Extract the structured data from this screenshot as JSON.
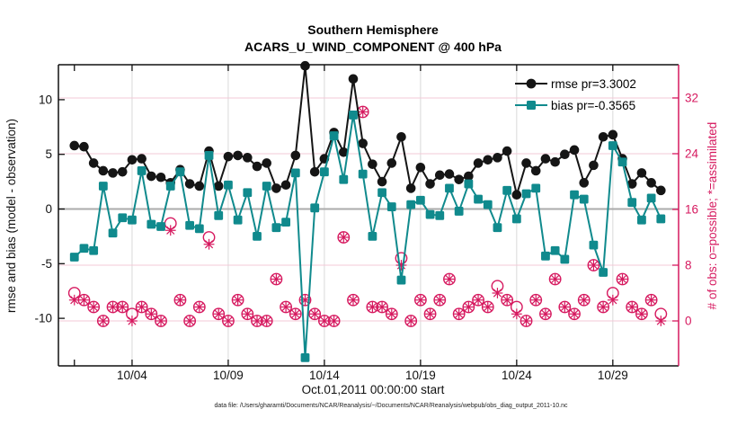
{
  "title": {
    "line1": "Southern Hemisphere",
    "line2": "ACARS_U_WIND_COMPONENT @ 400 hPa"
  },
  "axes": {
    "left": {
      "label": "rmse and bias (model - observation)",
      "ticks": [
        -10,
        -5,
        0,
        5,
        10
      ],
      "lim": [
        -14.35,
        13.2
      ],
      "color": "#111111"
    },
    "right": {
      "label": "# of obs: o=possible; *=assimilated",
      "ticks": [
        0,
        8,
        16,
        24,
        32
      ],
      "lim": [
        -6.45,
        36.77
      ],
      "color": "#d6195f"
    },
    "x": {
      "label": "Oct.01,2011 00:00:00 start",
      "ticks": [
        {
          "day": 1,
          "label": ""
        },
        {
          "day": 4,
          "label": "10/04"
        },
        {
          "day": 9,
          "label": "10/09"
        },
        {
          "day": 14,
          "label": "10/14"
        },
        {
          "day": 19,
          "label": "10/19"
        },
        {
          "day": 24,
          "label": "10/24"
        },
        {
          "day": 29,
          "label": "10/29"
        }
      ],
      "lim": [
        0.17,
        32.42
      ]
    }
  },
  "legend": [
    {
      "name": "rmse",
      "label": "rmse pr=3.3002",
      "color": "#151515",
      "marker": "circle"
    },
    {
      "name": "bias",
      "label": "bias pr=-0.3565",
      "color": "#108a8d",
      "marker": "square"
    }
  ],
  "caption": "data file: /Users/gharamti/Documents/NCAR/Reanalysis/~/Documents/NCAR/Reanalysis/webpub/obs_diag_output_2011-10.nc",
  "colors": {
    "rmse": "#151515",
    "bias": "#108a8d",
    "obs": "#d6195f",
    "grid_pink": "#f3c9d7",
    "grid_gray": "#d9d9d9",
    "zero_line": "#ababab",
    "axis": "#111111"
  },
  "chart_data": {
    "type": "line",
    "x_unit": "day of October 2011 (2 analysis times per day)",
    "x": [
      1,
      1.5,
      2,
      2.5,
      3,
      3.5,
      4,
      4.5,
      5,
      5.5,
      6,
      6.5,
      7,
      7.5,
      8,
      8.5,
      9,
      9.5,
      10,
      10.5,
      11,
      11.5,
      12,
      12.5,
      13,
      13.5,
      14,
      14.5,
      15,
      15.5,
      16,
      16.5,
      17,
      17.5,
      18,
      18.5,
      19,
      19.5,
      20,
      20.5,
      21,
      21.5,
      22,
      22.5,
      23,
      23.5,
      24,
      24.5,
      25,
      25.5,
      26,
      26.5,
      27,
      27.5,
      28,
      28.5,
      29,
      29.5,
      30,
      30.5,
      31,
      31.5
    ],
    "series": [
      {
        "name": "rmse pr=3.3002",
        "axis": "left",
        "color": "#151515",
        "marker": "filled-circle",
        "values": [
          5.8,
          5.7,
          4.2,
          3.5,
          3.3,
          3.4,
          4.5,
          4.6,
          3.0,
          2.9,
          2.4,
          3.6,
          2.3,
          2.1,
          5.3,
          2.1,
          4.8,
          4.9,
          4.7,
          3.9,
          4.2,
          1.9,
          2.2,
          4.9,
          13.1,
          3.4,
          4.6,
          7.0,
          5.2,
          11.9,
          6.0,
          4.1,
          2.5,
          4.2,
          6.6,
          1.9,
          3.8,
          2.3,
          3.1,
          3.2,
          2.7,
          3.0,
          4.2,
          4.5,
          4.7,
          5.3,
          1.3,
          4.2,
          3.5,
          4.6,
          4.3,
          5.0,
          5.4,
          2.4,
          4.0,
          6.6,
          6.8,
          4.6,
          2.3,
          3.3,
          2.4,
          1.7
        ]
      },
      {
        "name": "bias pr=-0.3565",
        "axis": "left",
        "color": "#108a8d",
        "marker": "filled-square",
        "values": [
          -4.4,
          -3.6,
          -3.8,
          2.1,
          -2.2,
          -0.8,
          -1.0,
          3.5,
          -1.4,
          -1.6,
          2.1,
          3.4,
          -1.5,
          -1.8,
          4.9,
          -0.6,
          2.2,
          -1.0,
          1.5,
          -2.5,
          2.1,
          -1.7,
          -1.2,
          3.3,
          -13.6,
          0.1,
          3.4,
          6.7,
          2.7,
          8.6,
          3.2,
          -2.5,
          1.5,
          0.2,
          -6.5,
          0.4,
          0.8,
          -0.5,
          -0.6,
          1.9,
          -0.2,
          2.3,
          0.9,
          0.4,
          -1.7,
          1.7,
          -0.9,
          1.4,
          1.9,
          -4.3,
          -3.8,
          -4.6,
          1.3,
          0.9,
          -3.3,
          -5.8,
          5.8,
          4.3,
          0.6,
          -1.0,
          1.0,
          -0.9
        ]
      }
    ],
    "scatter": [
      {
        "name": "# of obs possible",
        "axis": "right",
        "color": "#d6195f",
        "marker": "open-circle",
        "values": [
          4,
          3,
          2,
          0,
          2,
          2,
          1,
          2,
          1,
          0,
          14,
          3,
          0,
          2,
          12,
          1,
          0,
          3,
          1,
          0,
          0,
          6,
          2,
          1,
          3,
          1,
          0,
          0,
          12,
          3,
          30,
          2,
          2,
          1,
          9,
          0,
          3,
          1,
          3,
          6,
          1,
          2,
          3,
          2,
          5,
          3,
          2,
          0,
          3,
          1,
          6,
          2,
          1,
          3,
          8,
          2,
          4,
          6,
          2,
          1,
          3,
          1
        ]
      },
      {
        "name": "# of obs assimilated",
        "axis": "right",
        "color": "#d6195f",
        "marker": "asterisk",
        "values": [
          3,
          3,
          2,
          0,
          2,
          2,
          0,
          2,
          1,
          0,
          13,
          3,
          0,
          2,
          11,
          1,
          0,
          3,
          1,
          0,
          0,
          6,
          2,
          1,
          3,
          1,
          0,
          0,
          12,
          3,
          30,
          2,
          2,
          1,
          8,
          0,
          3,
          1,
          3,
          6,
          1,
          2,
          3,
          2,
          4,
          3,
          1,
          0,
          3,
          1,
          6,
          2,
          1,
          3,
          8,
          2,
          3,
          6,
          2,
          1,
          3,
          0
        ]
      }
    ],
    "grid": "on",
    "legend_position": "top-right-inside"
  }
}
